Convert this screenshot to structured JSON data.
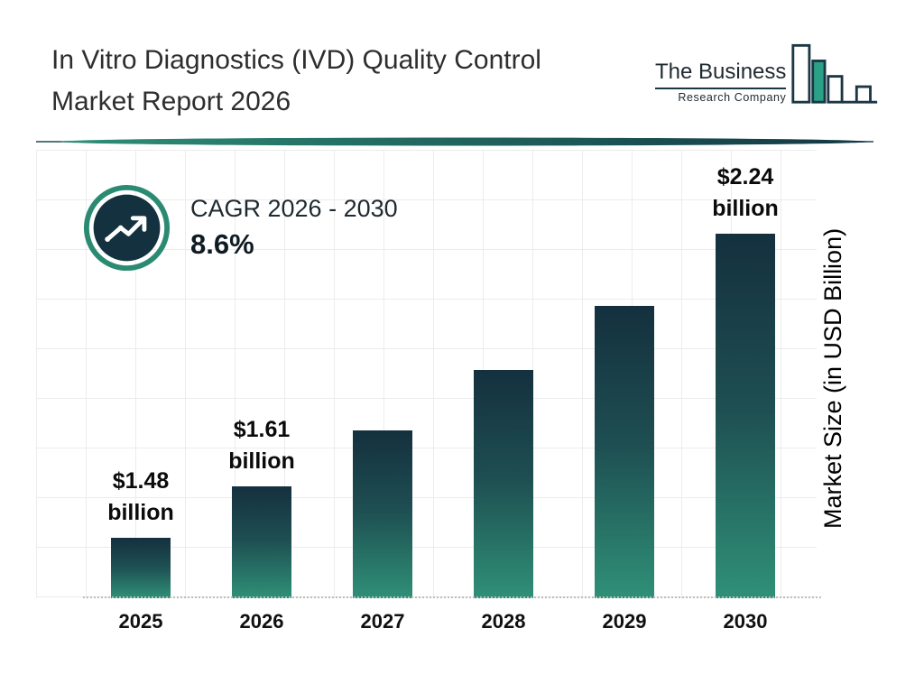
{
  "header": {
    "title_line1": "In Vitro Diagnostics (IVD) Quality Control",
    "title_line2": "Market Report 2026",
    "logo": {
      "name_line": "The Business",
      "subtitle_line": "Research Company"
    }
  },
  "cagr_badge": {
    "label": "CAGR 2026 - 2030",
    "value": "8.6%"
  },
  "chart_data": {
    "type": "bar",
    "title": "In Vitro Diagnostics (IVD) Quality Control Market Report 2026",
    "categories": [
      "2025",
      "2026",
      "2027",
      "2028",
      "2029",
      "2030"
    ],
    "values": [
      1.48,
      1.61,
      1.75,
      1.9,
      2.06,
      2.24
    ],
    "unit": "USD Billion",
    "bar_labels": [
      {
        "value": "$1.48",
        "unit": "billion"
      },
      {
        "value": "$1.61",
        "unit": "billion"
      },
      null,
      null,
      null,
      {
        "value": "$2.24",
        "unit": "billion"
      }
    ],
    "xlabel": "",
    "ylabel": "Market Size (in USD Billion)",
    "ylim": [
      1.33,
      2.45
    ],
    "grid": true,
    "legend": false,
    "colors": {
      "bar_gradient_top": "#14303e",
      "bar_gradient_bottom": "#2f9077",
      "accent_teal": "#2a8a72",
      "badge_fill": "#13313f",
      "grid_line": "#ececec"
    }
  }
}
